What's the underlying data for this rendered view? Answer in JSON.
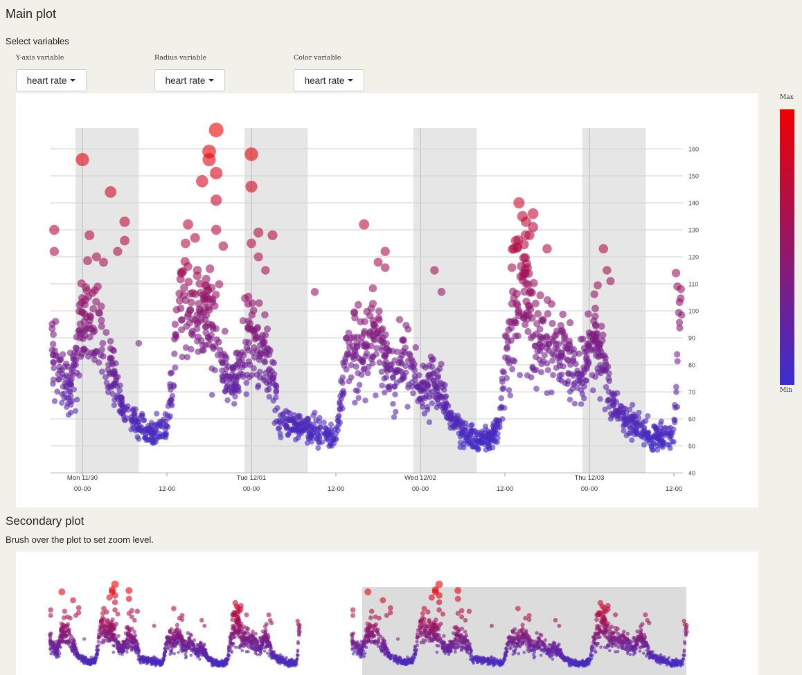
{
  "main": {
    "title": "Main plot",
    "select_title": "Select variables",
    "controls": [
      {
        "label": "Y-axis variable",
        "value": "heart rate"
      },
      {
        "label": "Radius variable",
        "value": "heart rate"
      },
      {
        "label": "Color variable",
        "value": "heart rate"
      }
    ]
  },
  "secondary": {
    "title": "Secondary plot",
    "hint": "Brush over the plot to set zoom level."
  },
  "legend": {
    "max_label": "Max",
    "min_label": "Min",
    "max_color": "#ee0000",
    "min_color": "#3a2fd0"
  },
  "chart_data": {
    "type": "scatter",
    "title": "",
    "xlabel": "",
    "ylabel": "",
    "y_variable": "heart rate",
    "radius_variable": "heart rate",
    "color_variable": "heart rate",
    "ylim": [
      40,
      168
    ],
    "yticks": [
      40,
      50,
      60,
      70,
      80,
      90,
      100,
      110,
      120,
      130,
      140,
      150,
      160
    ],
    "x_range_hours": [
      -4,
      85
    ],
    "x_ticks": [
      {
        "hour": 0,
        "label": "Mon 11/30",
        "time": "00-00"
      },
      {
        "hour": 12,
        "label": "",
        "time": "12-00"
      },
      {
        "hour": 24,
        "label": "Tue 12/01",
        "time": "00-00"
      },
      {
        "hour": 36,
        "label": "",
        "time": "12-00"
      },
      {
        "hour": 48,
        "label": "Wed 12/02",
        "time": "00-00"
      },
      {
        "hour": 60,
        "label": "",
        "time": "12-00"
      },
      {
        "hour": 72,
        "label": "Thu 12/03",
        "time": "00-00"
      },
      {
        "hour": 84,
        "label": "",
        "time": "12-00"
      }
    ],
    "night_bands_hours": [
      [
        -1,
        8
      ],
      [
        23,
        32
      ],
      [
        47,
        56
      ],
      [
        71,
        80
      ]
    ],
    "grid": true,
    "profile": [
      {
        "hour": -4.5,
        "hr": 85
      },
      {
        "hour": -2,
        "hr": 68
      },
      {
        "hour": 0,
        "hr": 95
      },
      {
        "hour": 2.5,
        "hr": 95
      },
      {
        "hour": 4,
        "hr": 80
      },
      {
        "hour": 6,
        "hr": 62
      },
      {
        "hour": 10,
        "hr": 54
      },
      {
        "hour": 12,
        "hr": 57
      },
      {
        "hour": 14,
        "hr": 105
      },
      {
        "hour": 16,
        "hr": 100
      },
      {
        "hour": 17.5,
        "hr": 100
      },
      {
        "hour": 19.5,
        "hr": 85
      },
      {
        "hour": 21,
        "hr": 72
      },
      {
        "hour": 24,
        "hr": 88
      },
      {
        "hour": 26,
        "hr": 85
      },
      {
        "hour": 28,
        "hr": 60
      },
      {
        "hour": 32,
        "hr": 56
      },
      {
        "hour": 36,
        "hr": 53
      },
      {
        "hour": 38,
        "hr": 90
      },
      {
        "hour": 40,
        "hr": 85
      },
      {
        "hour": 42,
        "hr": 92
      },
      {
        "hour": 44,
        "hr": 76
      },
      {
        "hour": 46,
        "hr": 82
      },
      {
        "hour": 48,
        "hr": 70
      },
      {
        "hour": 50,
        "hr": 75
      },
      {
        "hour": 52,
        "hr": 62
      },
      {
        "hour": 54,
        "hr": 55
      },
      {
        "hour": 56,
        "hr": 51
      },
      {
        "hour": 59,
        "hr": 55
      },
      {
        "hour": 61,
        "hr": 100
      },
      {
        "hour": 63,
        "hr": 108
      },
      {
        "hour": 65,
        "hr": 90
      },
      {
        "hour": 67,
        "hr": 85
      },
      {
        "hour": 69,
        "hr": 80
      },
      {
        "hour": 71,
        "hr": 76
      },
      {
        "hour": 73,
        "hr": 92
      },
      {
        "hour": 75,
        "hr": 66
      },
      {
        "hour": 77,
        "hr": 60
      },
      {
        "hour": 79,
        "hr": 57
      },
      {
        "hour": 81,
        "hr": 53
      },
      {
        "hour": 84,
        "hr": 53
      },
      {
        "hour": 84.6,
        "hr": 90
      },
      {
        "hour": 85,
        "hr": 95
      }
    ],
    "outliers": [
      {
        "hour": 0,
        "hr": 156
      },
      {
        "hour": 1,
        "hr": 128
      },
      {
        "hour": 2,
        "hr": 120
      },
      {
        "hour": 3,
        "hr": 118
      },
      {
        "hour": 4,
        "hr": 144
      },
      {
        "hour": 5,
        "hr": 122
      },
      {
        "hour": 6,
        "hr": 133
      },
      {
        "hour": 6,
        "hr": 126
      },
      {
        "hour": -4,
        "hr": 130
      },
      {
        "hour": -4,
        "hr": 122
      },
      {
        "hour": 8,
        "hr": 88
      },
      {
        "hour": 15,
        "hr": 132
      },
      {
        "hour": 16,
        "hr": 127
      },
      {
        "hour": 17,
        "hr": 148
      },
      {
        "hour": 18,
        "hr": 159
      },
      {
        "hour": 18,
        "hr": 156
      },
      {
        "hour": 19,
        "hr": 167
      },
      {
        "hour": 19,
        "hr": 151
      },
      {
        "hour": 19,
        "hr": 141
      },
      {
        "hour": 19,
        "hr": 130
      },
      {
        "hour": 20,
        "hr": 124
      },
      {
        "hour": 24,
        "hr": 158
      },
      {
        "hour": 24,
        "hr": 146
      },
      {
        "hour": 24,
        "hr": 125
      },
      {
        "hour": 25,
        "hr": 129
      },
      {
        "hour": 25,
        "hr": 120
      },
      {
        "hour": 27,
        "hr": 128
      },
      {
        "hour": 26,
        "hr": 115
      },
      {
        "hour": 33,
        "hr": 107
      },
      {
        "hour": 40,
        "hr": 132
      },
      {
        "hour": 42,
        "hr": 118
      },
      {
        "hour": 43,
        "hr": 122
      },
      {
        "hour": 43,
        "hr": 116
      },
      {
        "hour": 50,
        "hr": 115
      },
      {
        "hour": 51,
        "hr": 107
      },
      {
        "hour": 62,
        "hr": 140
      },
      {
        "hour": 62.5,
        "hr": 135
      },
      {
        "hour": 63,
        "hr": 133
      },
      {
        "hour": 64,
        "hr": 136
      },
      {
        "hour": 64,
        "hr": 131
      },
      {
        "hour": 63.5,
        "hr": 128
      },
      {
        "hour": 66,
        "hr": 123
      },
      {
        "hour": 61,
        "hr": 116
      },
      {
        "hour": 74,
        "hr": 123
      },
      {
        "hour": 74.5,
        "hr": 115
      },
      {
        "hour": 75,
        "hr": 111
      },
      {
        "hour": 84.3,
        "hr": 114
      },
      {
        "hour": 84.5,
        "hr": 109
      }
    ]
  }
}
